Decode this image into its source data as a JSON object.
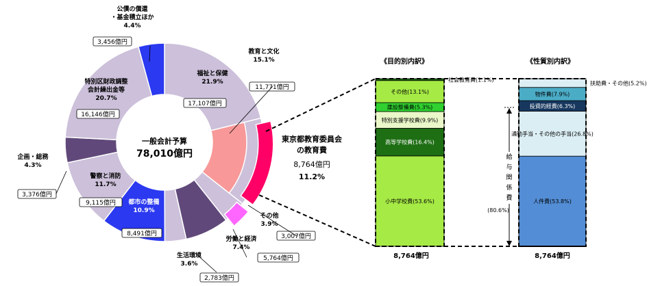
{
  "chart_data": [
    {
      "type": "pie",
      "center_title": "一般会計予算",
      "center_total": "78,010億円",
      "slices": [
        {
          "name": "福祉と保健",
          "pct": "21.9%",
          "amount": "17,107億円",
          "value": 21.9,
          "color": "#ccc0da",
          "label_color": "#000000"
        },
        {
          "name": "教育と文化",
          "pct": "15.1%",
          "amount": "11,771億円",
          "value": 15.1,
          "color": "#ccc0da",
          "label_color": "#000000"
        },
        {
          "name": "その他",
          "pct": "3.9%",
          "amount": "3,007億円",
          "value": 3.9,
          "color": "#ccc0da",
          "label_color": "#000000"
        },
        {
          "name": "労働と経済",
          "pct": "7.4%",
          "amount": "5,764億円",
          "value": 7.4,
          "color": "#60497a",
          "label_color": "#000000"
        },
        {
          "name": "生活環境",
          "pct": "3.6%",
          "amount": "2,783億円",
          "value": 3.6,
          "color": "#ccc0da",
          "label_color": "#000000"
        },
        {
          "name": "都市の整備",
          "pct": "10.9%",
          "amount": "8,491億円",
          "value": 10.9,
          "color": "#2b39f0",
          "label_color": "#ffffff"
        },
        {
          "name": "警察と消防",
          "pct": "11.7%",
          "amount": "9,115億円",
          "value": 11.7,
          "color": "#ccc0da",
          "label_color": "#000000"
        },
        {
          "name": "企画・総務",
          "pct": "4.3%",
          "amount": "3,376億円",
          "value": 4.3,
          "color": "#60497a",
          "label_color": "#000000"
        },
        {
          "name": "特別区財政調整会計繰出金等",
          "pct": "20.7%",
          "amount": "16,146億円",
          "value": 20.7,
          "color": "#ccc0da",
          "label_color": "#000000"
        },
        {
          "name": "公債の償還・基金積立ほか",
          "pct": "4.4%",
          "amount": "3,456億円",
          "value": 4.4,
          "color": "#2b39f0",
          "label_color": "#000000"
        }
      ],
      "inner_split": {
        "education": 11.2,
        "other": 3.9
      },
      "callout": {
        "line1": "東京都教育委員会",
        "line2": "の教育費",
        "amount": "8,764億円",
        "pct": "11.2%"
      }
    },
    {
      "type": "bar",
      "title": "《目的別内訳》",
      "total": "8,764億円",
      "segments": [
        {
          "label": "小中学校費(53.6%)",
          "value": 53.6,
          "color": "#a6ea45"
        },
        {
          "label": "高等学校費(16.4%)",
          "value": 16.4,
          "color": "#1e6e14"
        },
        {
          "label": "特別支援学校費(9.9%)",
          "value": 9.9,
          "color": "#eaf7c8"
        },
        {
          "label": "建設整備費(5.3%)",
          "value": 5.3,
          "color": "#2fd02f"
        },
        {
          "label": "その他(13.1%)",
          "value": 13.1,
          "color": "#a6ea45"
        },
        {
          "label": "社会教育費(1.1%)",
          "value": 1.1,
          "color": "#1e6e14"
        }
      ]
    },
    {
      "type": "bar",
      "title": "《性質別内訳》",
      "total": "8,764億円",
      "segments": [
        {
          "label": "人件費(53.8%)",
          "value": 53.8,
          "color": "#538dd5"
        },
        {
          "label": "通勤手当・その他の手当(26.8%)",
          "value": 26.8,
          "color": "#dbeef3"
        },
        {
          "label": "投資的経費(6.3%)",
          "value": 6.3,
          "color": "#17375e"
        },
        {
          "label": "物件費(7.9%)",
          "value": 7.9,
          "color": "#4bacc6"
        },
        {
          "label": "扶助費・その他(5.2%)",
          "value": 5.2,
          "color": "#dbeef3"
        }
      ],
      "bracket_label": "給与関係費",
      "bracket_pct": "(80.6%)"
    }
  ]
}
